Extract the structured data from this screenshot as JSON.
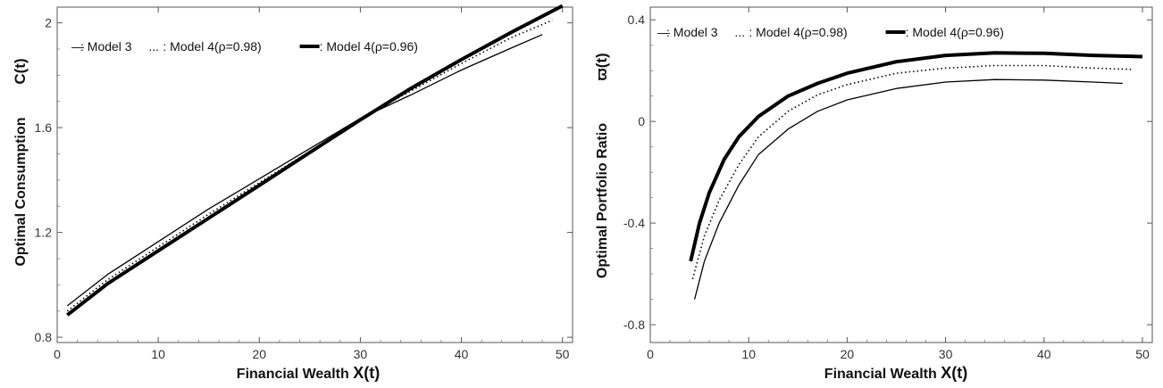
{
  "chart_data": [
    {
      "type": "line",
      "xlabel": "Financial Wealth",
      "xlabel_symbol": "X(t)",
      "ylabel": "Optimal Consumption",
      "ylabel_symbol": "C(t)",
      "xlim": [
        0,
        51
      ],
      "ylim": [
        0.78,
        2.06
      ],
      "xticks": [
        0,
        10,
        20,
        30,
        40,
        50
      ],
      "yticks": [
        0.8,
        1.2,
        1.6,
        2
      ],
      "ytick_labels": [
        "0.8",
        "1.2",
        "1.6",
        "2"
      ],
      "grid": false,
      "legend_position": "top-left",
      "legend": [
        {
          "marker": "—",
          "label": ": Model 3",
          "style": "thin"
        },
        {
          "marker": "...",
          "label": ": Model 4(ρ=0.98)",
          "style": "dotted"
        },
        {
          "marker": "▬",
          "label": ": Model 4(ρ=0.96)",
          "style": "thick"
        }
      ],
      "series": [
        {
          "style": "thin",
          "x": [
            1,
            5,
            10,
            15,
            20,
            25,
            30,
            35,
            40,
            45,
            48
          ],
          "y": [
            0.92,
            1.04,
            1.165,
            1.29,
            1.405,
            1.52,
            1.635,
            1.725,
            1.82,
            1.905,
            1.955
          ]
        },
        {
          "style": "dotted",
          "x": [
            1,
            5,
            10,
            15,
            20,
            25,
            30,
            35,
            40,
            45,
            49
          ],
          "y": [
            0.9,
            1.02,
            1.145,
            1.27,
            1.39,
            1.51,
            1.635,
            1.74,
            1.845,
            1.945,
            2.01
          ]
        },
        {
          "style": "thick",
          "x": [
            1,
            5,
            10,
            15,
            20,
            25,
            30,
            35,
            40,
            45,
            50
          ],
          "y": [
            0.885,
            1.005,
            1.13,
            1.255,
            1.38,
            1.505,
            1.63,
            1.75,
            1.86,
            1.965,
            2.065
          ]
        }
      ]
    },
    {
      "type": "line",
      "xlabel": "Financial Wealth",
      "xlabel_symbol": "X(t)",
      "ylabel": "Optimal Portfolio Ratio",
      "ylabel_symbol": "ϖ(t)",
      "xlim": [
        0,
        51
      ],
      "ylim": [
        -0.87,
        0.45
      ],
      "xticks": [
        0,
        10,
        20,
        30,
        40,
        50
      ],
      "yticks": [
        -0.8,
        -0.4,
        0,
        0.4
      ],
      "ytick_labels": [
        "-0.8",
        "-0.4",
        "0",
        "0.4"
      ],
      "grid": false,
      "legend_position": "top-left",
      "legend": [
        {
          "marker": "—",
          "label": ": Model 3",
          "style": "thin"
        },
        {
          "marker": "...",
          "label": ": Model 4(ρ=0.98)",
          "style": "dotted"
        },
        {
          "marker": "▬",
          "label": ": Model 4(ρ=0.96)",
          "style": "thick"
        }
      ],
      "series": [
        {
          "style": "thin",
          "x": [
            4.5,
            5.5,
            7,
            9,
            11,
            14,
            17,
            20,
            25,
            30,
            35,
            40,
            45,
            48
          ],
          "y": [
            -0.7,
            -0.55,
            -0.4,
            -0.25,
            -0.13,
            -0.03,
            0.04,
            0.085,
            0.13,
            0.155,
            0.165,
            0.163,
            0.155,
            0.15
          ]
        },
        {
          "style": "dotted",
          "x": [
            4.3,
            5.5,
            7,
            9,
            11,
            14,
            17,
            20,
            25,
            30,
            35,
            40,
            45,
            49
          ],
          "y": [
            -0.62,
            -0.45,
            -0.31,
            -0.17,
            -0.06,
            0.04,
            0.105,
            0.145,
            0.19,
            0.21,
            0.22,
            0.22,
            0.21,
            0.205
          ]
        },
        {
          "style": "thick",
          "x": [
            4.1,
            5,
            6,
            7.5,
            9,
            11,
            14,
            17,
            20,
            25,
            30,
            35,
            40,
            45,
            50
          ],
          "y": [
            -0.55,
            -0.4,
            -0.28,
            -0.15,
            -0.06,
            0.02,
            0.1,
            0.15,
            0.19,
            0.235,
            0.26,
            0.27,
            0.268,
            0.26,
            0.255
          ]
        }
      ]
    }
  ]
}
